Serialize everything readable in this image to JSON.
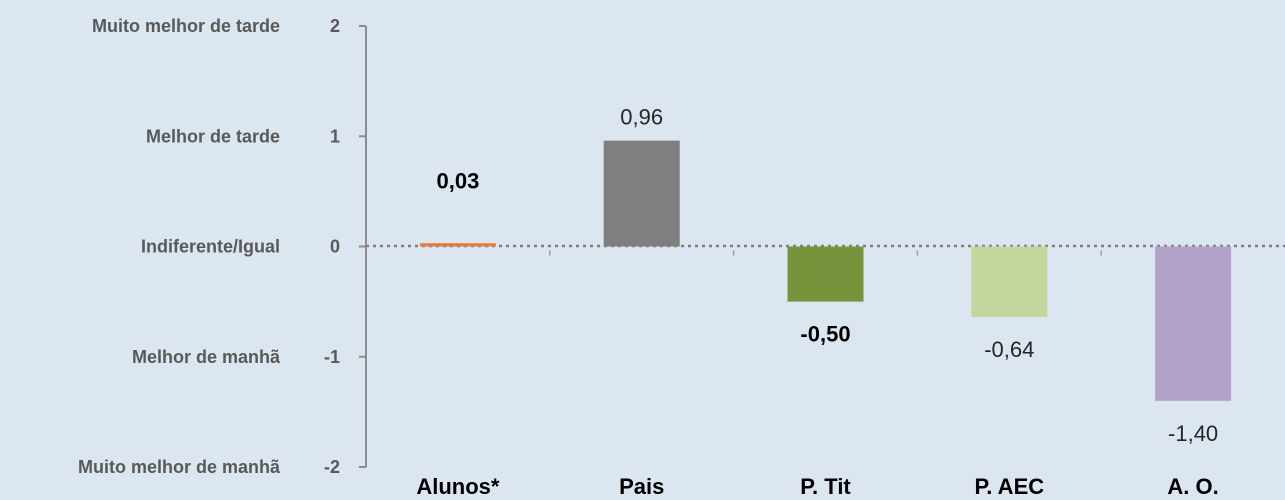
{
  "chart_data": {
    "type": "bar",
    "categories": [
      "Alunos*",
      "Pais",
      "P. Tit",
      "P. AEC",
      "A. O."
    ],
    "values": [
      0.03,
      0.96,
      -0.5,
      -0.64,
      -1.4
    ],
    "data_labels": [
      "0,03",
      "0,96",
      "-0,50",
      "-0,64",
      "-1,40"
    ],
    "data_label_bold": [
      true,
      false,
      true,
      false,
      false
    ],
    "colors": [
      "#e0803e",
      "#7f7f7f",
      "#77933c",
      "#c3d69b",
      "#b2a2c7"
    ],
    "ylim": [
      -2,
      2
    ],
    "yticks": [
      "2",
      "1",
      "0",
      "-1",
      "-2"
    ],
    "level_labels": [
      "Muito melhor de tarde",
      "Melhor de tarde",
      "Indiferente/Igual",
      "Melhor de manhã",
      "Muito melhor de manhã"
    ],
    "zero_line": "dotted",
    "background": "#dce6f1"
  }
}
